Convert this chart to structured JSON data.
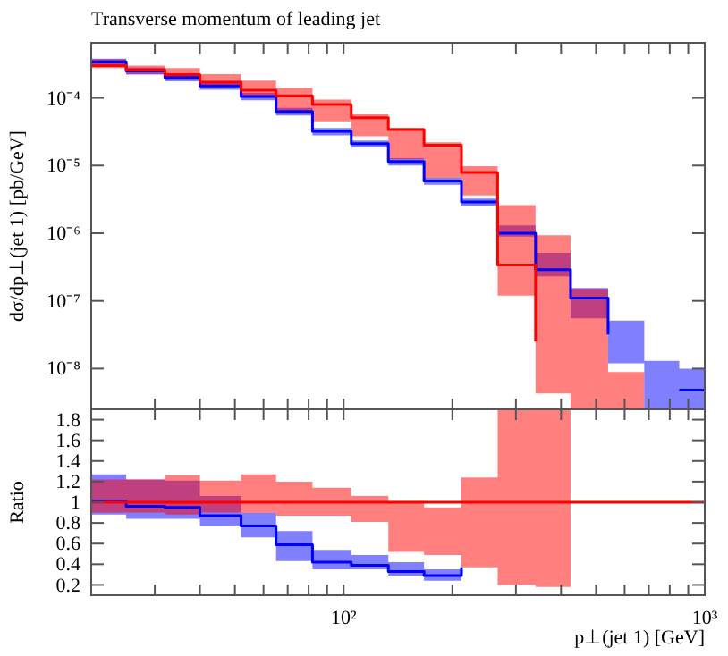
{
  "chart_data": [
    {
      "type": "step",
      "title": "Transverse momentum of leading jet",
      "ylabel": "dσ/dp⊥(jet 1) [pb/GeV]",
      "log": "xy",
      "tick_labels": "y",
      "x": [
        20,
        25,
        32,
        40,
        52,
        65,
        82,
        105,
        133,
        167,
        212,
        267,
        340,
        425,
        540,
        680,
        850,
        1000
      ],
      "xlim": [
        20,
        1000
      ],
      "ylim": [
        2.5e-09,
        0.00065
      ],
      "xticks": [
        {
          "value": 30,
          "label": null
        },
        {
          "value": 40,
          "label": null
        },
        {
          "value": 50,
          "label": null
        },
        {
          "value": 60,
          "label": null
        },
        {
          "value": 70,
          "label": null
        },
        {
          "value": 80,
          "label": null
        },
        {
          "value": 90,
          "label": null
        },
        {
          "value": 100,
          "label": null
        },
        {
          "value": 200,
          "label": null
        },
        {
          "value": 300,
          "label": null
        },
        {
          "value": 400,
          "label": null
        },
        {
          "value": 500,
          "label": null
        },
        {
          "value": 600,
          "label": null
        },
        {
          "value": 700,
          "label": null
        },
        {
          "value": 800,
          "label": null
        },
        {
          "value": 900,
          "label": null
        },
        {
          "value": 1000,
          "label": null
        }
      ],
      "yticks": [
        {
          "value": 1e-08,
          "label": "10⁻⁸"
        },
        {
          "value": 1e-07,
          "label": "10⁻⁷"
        },
        {
          "value": 1e-06,
          "label": "10⁻⁶"
        },
        {
          "value": 1e-05,
          "label": "10⁻⁵"
        },
        {
          "value": 0.0001,
          "label": "10⁻⁴"
        }
      ],
      "series": [
        {
          "color": "#0000ff",
          "values": [
            0.00034,
            0.00025,
            0.0002,
            0.00015,
            0.000105,
            6.3e-05,
            3.2e-05,
            2.1e-05,
            1.15e-05,
            5.9e-06,
            2.9e-06,
            1e-06,
            2.9e-07,
            1.1e-07,
            3.2e-08,
            null,
            4.8e-09,
            4.8e-09
          ],
          "lower": [
            0.0003,
            0.00022,
            0.000176,
            0.000132,
            9.2e-05,
            5.5e-05,
            2.8e-05,
            1.85e-05,
            1e-05,
            5.2e-06,
            2.55e-06,
            8.9e-07,
            2.3e-07,
            5.5e-08,
            1.2e-08,
            2.5e-09,
            2.5e-09,
            2.5e-09
          ],
          "upper": [
            0.00038,
            0.00028,
            0.000224,
            0.000168,
            0.000118,
            7.1e-05,
            3.6e-05,
            2.35e-05,
            1.29e-05,
            6.6e-06,
            3.25e-06,
            1.3e-06,
            5.1e-07,
            1.55e-07,
            5.1e-08,
            1.3e-08,
            1e-08,
            1e-08
          ]
        },
        {
          "color": "#ff0000",
          "values": [
            0.0003,
            0.00026,
            0.00022,
            0.00017,
            0.00013,
            0.000107,
            8e-05,
            5.1e-05,
            3.4e-05,
            2e-05,
            7.9e-06,
            3.4e-07,
            2.5e-08,
            null,
            null,
            null,
            null,
            null
          ],
          "lower": [
            0.000275,
            0.000224,
            0.000195,
            0.00015,
            0.000106,
            6.6e-05,
            4.5e-05,
            2.7e-05,
            1.25e-05,
            6.6e-06,
            3.6e-06,
            1.2e-07,
            4.3e-09,
            2.5e-09,
            2.5e-09,
            2.5e-09,
            null,
            null
          ],
          "upper": [
            0.00037,
            0.0003,
            0.000275,
            0.000224,
            0.00018,
            0.00014,
            9.4e-05,
            5.8e-05,
            3.6e-05,
            2.2e-05,
            9.8e-06,
            2.6e-06,
            9.3e-07,
            1.5e-07,
            8.9e-09,
            8.4e-09,
            null,
            null
          ]
        }
      ]
    },
    {
      "type": "step",
      "ylabel": "Ratio",
      "xlabel": "p⊥(jet 1) [GeV]",
      "log": "x",
      "x": [
        20,
        25,
        32,
        40,
        52,
        65,
        82,
        105,
        133,
        167,
        212,
        267,
        340,
        425,
        540,
        680,
        850,
        1000
      ],
      "xlim": [
        20,
        1000
      ],
      "ylim": [
        0.1,
        1.9
      ],
      "xticks": [
        {
          "value": 30,
          "label": null
        },
        {
          "value": 40,
          "label": null
        },
        {
          "value": 50,
          "label": null
        },
        {
          "value": 60,
          "label": null
        },
        {
          "value": 70,
          "label": null
        },
        {
          "value": 80,
          "label": null
        },
        {
          "value": 90,
          "label": null
        },
        {
          "value": 100,
          "label": "10²"
        },
        {
          "value": 200,
          "label": null
        },
        {
          "value": 300,
          "label": null
        },
        {
          "value": 400,
          "label": null
        },
        {
          "value": 500,
          "label": null
        },
        {
          "value": 600,
          "label": null
        },
        {
          "value": 700,
          "label": null
        },
        {
          "value": 800,
          "label": null
        },
        {
          "value": 900,
          "label": null
        },
        {
          "value": 1000,
          "label": "10³"
        }
      ],
      "yticks": [
        0.2,
        0.4,
        0.6,
        0.8,
        1,
        1.2,
        1.4,
        1.6,
        1.8
      ],
      "series": [
        {
          "color": "#0000ff",
          "values": [
            1.01,
            0.96,
            0.95,
            0.87,
            0.77,
            0.59,
            0.42,
            0.39,
            0.33,
            0.29,
            0.37,
            null,
            null,
            null,
            null,
            null,
            null,
            null
          ],
          "lower": [
            0.88,
            0.84,
            0.84,
            0.77,
            0.66,
            0.43,
            0.35,
            0.35,
            0.29,
            0.24,
            0.3,
            null,
            null,
            null,
            null,
            null,
            null,
            null
          ],
          "upper": [
            1.27,
            1.22,
            1.21,
            1.06,
            0.9,
            0.72,
            0.54,
            0.49,
            0.42,
            0.35,
            0.42,
            null,
            null,
            null,
            null,
            null,
            null,
            null
          ]
        },
        {
          "color": "#ff0000",
          "values": [
            1,
            1,
            1,
            1,
            1,
            1,
            1,
            1,
            1,
            1,
            1,
            1,
            1,
            1,
            1,
            1,
            1,
            1
          ],
          "lower": [
            0.9,
            0.9,
            0.88,
            0.9,
            0.9,
            0.87,
            0.87,
            0.81,
            0.52,
            0.49,
            0.37,
            0.2,
            0.18,
            0.1,
            null,
            null,
            null,
            null
          ],
          "upper": [
            1.22,
            1.22,
            1.26,
            1.21,
            1.27,
            1.2,
            1.14,
            1.06,
            1.01,
            0.95,
            1.24,
            1.9,
            1.9,
            1.9,
            null,
            null,
            null,
            null
          ]
        }
      ]
    }
  ]
}
